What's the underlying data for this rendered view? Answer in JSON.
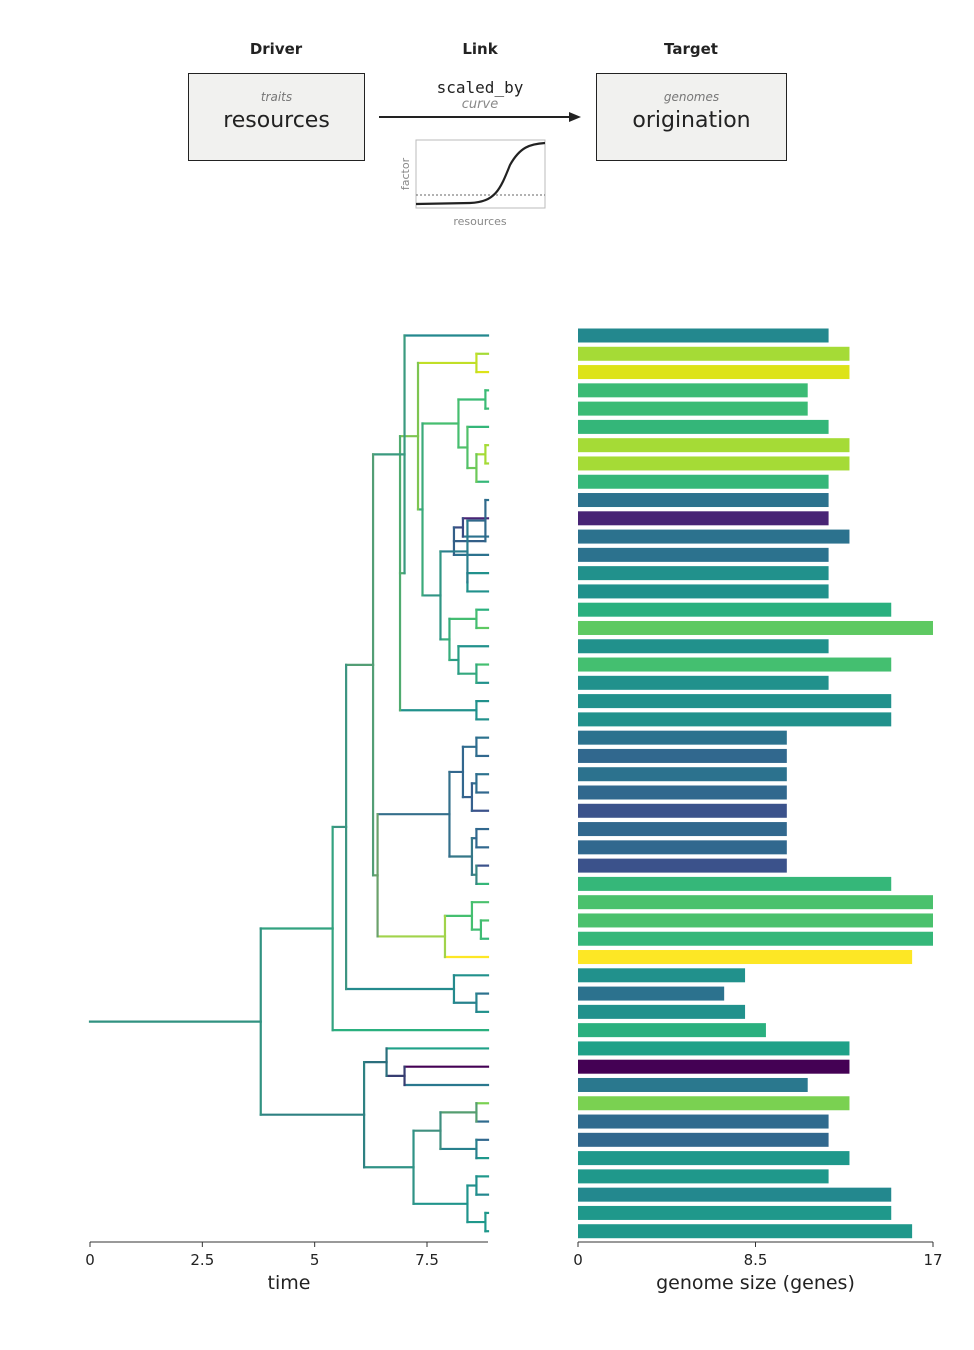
{
  "diagram": {
    "driver": {
      "header": "Driver",
      "category": "traits",
      "name": "resources"
    },
    "link": {
      "header": "Link",
      "op": "scaled_by",
      "kind": "curve",
      "inset_ylabel": "factor",
      "inset_xlabel": "resources"
    },
    "target": {
      "header": "Target",
      "category": "genomes",
      "name": "origination"
    }
  },
  "chart_data": [
    {
      "type": "tree",
      "xlabel": "time",
      "xlim": [
        0,
        8.8
      ],
      "xticks": [
        0,
        2.5,
        5,
        7.5
      ],
      "tick_labels": [
        "0",
        "2.5",
        "5",
        "7.5"
      ]
    },
    {
      "type": "bar",
      "orientation": "horizontal",
      "xlabel": "genome size (genes)",
      "xlim": [
        0,
        17
      ],
      "xticks": [
        0,
        8.5,
        17
      ],
      "tick_labels": [
        "0",
        "8.5",
        "17"
      ],
      "values": [
        12,
        13,
        13,
        11,
        11,
        12,
        13,
        13,
        12,
        12,
        12,
        13,
        12,
        12,
        12,
        15,
        17,
        12,
        15,
        12,
        15,
        15,
        10,
        10,
        10,
        10,
        10,
        10,
        10,
        10,
        15,
        17,
        17,
        17,
        16,
        8,
        7,
        8,
        9,
        13,
        13,
        11,
        13,
        12,
        12,
        13,
        12,
        15,
        15,
        16
      ],
      "colors": [
        "#23888e",
        "#a5db36",
        "#dde318",
        "#3bbb75",
        "#3bbb75",
        "#34b679",
        "#a5db36",
        "#a5db36",
        "#35b779",
        "#2c728e",
        "#482475",
        "#2c728e",
        "#2c728e",
        "#21918c",
        "#21918c",
        "#2ab07f",
        "#5ec962",
        "#21918c",
        "#44bf70",
        "#21918c",
        "#21918c",
        "#21918c",
        "#2c728e",
        "#31688e",
        "#2c728e",
        "#31688e",
        "#3b528b",
        "#31688e",
        "#31688e",
        "#3b528b",
        "#35b779",
        "#4ac16d",
        "#4ac16d",
        "#35b779",
        "#fde725",
        "#21918c",
        "#2c728e",
        "#21918c",
        "#2ab07f",
        "#1fa188",
        "#440154",
        "#2a788e",
        "#7ad151",
        "#2f6b8e",
        "#31688e",
        "#1f988b",
        "#1f988b",
        "#23888e",
        "#1f988b",
        "#1f988b"
      ]
    }
  ]
}
